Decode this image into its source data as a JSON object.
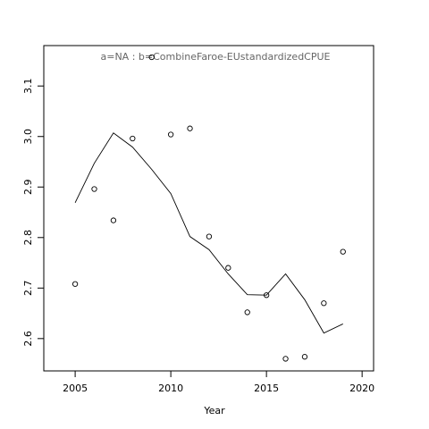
{
  "chart_data": {
    "type": "line",
    "title": "a=NA  :  b=CombineFaroe-EUstandardizedCPUE",
    "x_label": "Year",
    "x": [
      2005,
      2006,
      2007,
      2008,
      2009,
      2010,
      2011,
      2012,
      2013,
      2014,
      2015,
      2016,
      2017,
      2018,
      2019
    ],
    "series": [
      {
        "marker": "circle",
        "color": "#000000",
        "values": [
          2.708,
          2.896,
          2.834,
          2.996,
          3.157,
          3.004,
          3.016,
          2.802,
          2.74,
          2.652,
          2.686,
          2.56,
          2.564,
          2.67,
          2.772
        ]
      },
      {
        "marker": "none",
        "color": "#000000",
        "values": [
          2.869,
          2.947,
          3.007,
          2.979,
          2.935,
          2.887,
          2.802,
          2.776,
          2.728,
          2.687,
          2.686,
          2.728,
          2.677,
          2.611,
          2.629
        ]
      }
    ],
    "xlim": [
      2003.36,
      2020.6
    ],
    "xticks": [
      2005,
      2010,
      2015,
      2020
    ],
    "ylim": [
      2.536,
      3.18
    ],
    "yticks": [
      2.6,
      2.7,
      2.8,
      2.9,
      3.0,
      3.1
    ],
    "grid": false
  }
}
